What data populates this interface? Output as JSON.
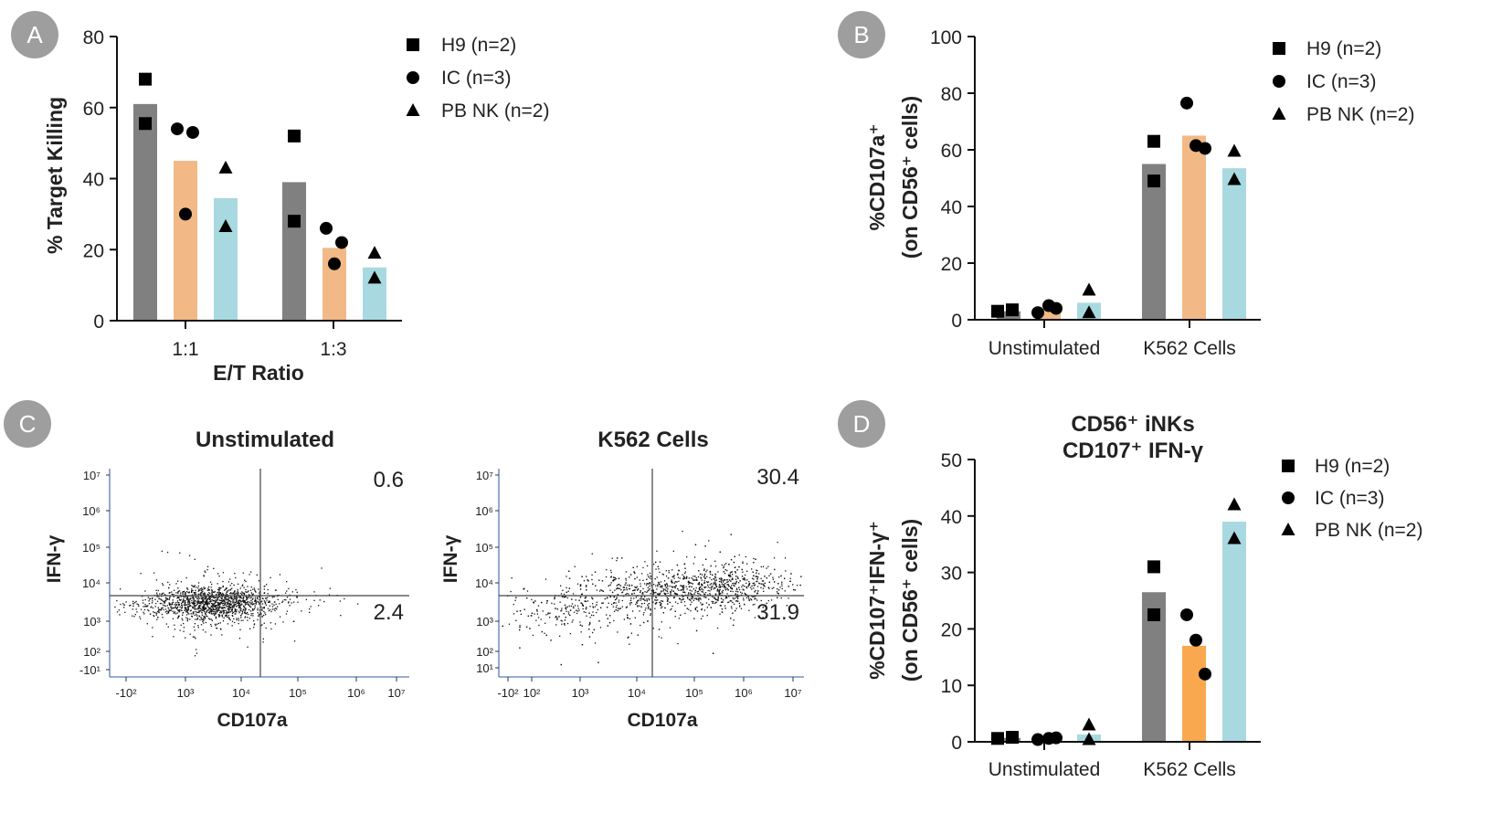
{
  "panels": {
    "A": {
      "badge": "A"
    },
    "B": {
      "badge": "B"
    },
    "C": {
      "badge": "C"
    },
    "D": {
      "badge": "D"
    }
  },
  "colors": {
    "H9": "#808080",
    "IC_A": "#f2b986",
    "IC_B": "#f2b986",
    "IC_D": "#f9a850",
    "PBNK": "#a8d9e0",
    "badge": "#9e9e9e",
    "markers": "#000000"
  },
  "chart_data": [
    {
      "id": "A",
      "type": "bar",
      "title": "",
      "xlabel": "E/T Ratio",
      "ylabel": "% Target Killing",
      "ylim": [
        0,
        80
      ],
      "yticks": [
        "0",
        "20",
        "40",
        "60",
        "80"
      ],
      "categories": [
        "1:1",
        "1:3"
      ],
      "legend_position": "top-right",
      "series": [
        {
          "name": "H9 (n=2)",
          "marker": "square",
          "values": [
            61,
            39
          ],
          "points": [
            [
              68,
              55.5
            ],
            [
              52,
              28
            ]
          ]
        },
        {
          "name": "IC (n=3)",
          "marker": "circle",
          "values": [
            45,
            20.5
          ],
          "points": [
            [
              54,
              53,
              30
            ],
            [
              26,
              22,
              16
            ]
          ]
        },
        {
          "name": "PB NK (n=2)",
          "marker": "triangle",
          "values": [
            34.5,
            15
          ],
          "points": [
            [
              43,
              26.5
            ],
            [
              19,
              12
            ]
          ]
        }
      ]
    },
    {
      "id": "B",
      "type": "bar",
      "title": "",
      "xlabel": "",
      "ylabel_line1": "%CD107a⁺",
      "ylabel_line2": "(on CD56⁺ cells)",
      "ylim": [
        0,
        100
      ],
      "yticks": [
        "0",
        "20",
        "40",
        "60",
        "80",
        "100"
      ],
      "categories": [
        "Unstimulated",
        "K562 Cells"
      ],
      "legend_position": "top-right",
      "series": [
        {
          "name": "H9 (n=2)",
          "marker": "square",
          "values": [
            3,
            55
          ],
          "points": [
            [
              3,
              3.5
            ],
            [
              63,
              49
            ]
          ]
        },
        {
          "name": "IC (n=3)",
          "marker": "circle",
          "values": [
            3.5,
            65
          ],
          "points": [
            [
              2.5,
              5,
              4
            ],
            [
              76.5,
              61.5,
              60.5
            ]
          ]
        },
        {
          "name": "PB NK (n=2)",
          "marker": "triangle",
          "values": [
            6,
            53.5
          ],
          "points": [
            [
              10.5,
              2.5
            ],
            [
              59.5,
              49.5
            ]
          ]
        }
      ]
    },
    {
      "id": "D",
      "type": "bar",
      "title_line1": "CD56⁺ iNKs",
      "title_line2": "CD107⁺ IFN-γ",
      "xlabel": "",
      "ylabel_line1": "%CD107⁺IFN-γ⁺",
      "ylabel_line2": "(on CD56⁺ cells)",
      "ylim": [
        0,
        50
      ],
      "yticks": [
        "0",
        "10",
        "20",
        "30",
        "40",
        "50"
      ],
      "categories": [
        "Unstimulated",
        "K562 Cells"
      ],
      "legend_position": "top-right",
      "series": [
        {
          "name": "H9 (n=2)",
          "marker": "square",
          "values": [
            0.7,
            26.5
          ],
          "points": [
            [
              0.6,
              0.8
            ],
            [
              31,
              22.5
            ]
          ]
        },
        {
          "name": "IC (n=3)",
          "marker": "circle",
          "values": [
            0.6,
            17
          ],
          "points": [
            [
              0.4,
              0.6,
              0.7
            ],
            [
              22.5,
              18,
              12
            ]
          ]
        },
        {
          "name": "PB NK (n=2)",
          "marker": "triangle",
          "values": [
            1.3,
            39
          ],
          "points": [
            [
              3,
              0.4
            ],
            [
              42,
              36
            ]
          ]
        }
      ]
    },
    {
      "id": "C",
      "type": "scatter",
      "plots": [
        {
          "title": "Unstimulated",
          "xlabel": "CD107a",
          "ylabel": "IFN-γ",
          "upper_right": "0.6",
          "lower_right": "2.4",
          "xticks": [
            "-10²",
            "10³",
            "10⁴",
            "10⁵",
            "10⁶",
            "10⁷"
          ],
          "yticks": [
            "10⁷",
            "10⁶",
            "10⁵",
            "10⁴",
            "10³",
            "10²",
            "-10¹"
          ]
        },
        {
          "title": "K562 Cells",
          "xlabel": "CD107a",
          "ylabel": "IFN-γ",
          "upper_right": "30.4",
          "lower_right": "31.9",
          "xticks": [
            "-10²",
            "10²",
            "10³",
            "10⁴",
            "10⁵",
            "10⁶",
            "10⁷"
          ],
          "yticks": [
            "10⁷",
            "10⁶",
            "10⁵",
            "10⁴",
            "10³",
            "10²",
            "10¹"
          ]
        }
      ]
    }
  ]
}
